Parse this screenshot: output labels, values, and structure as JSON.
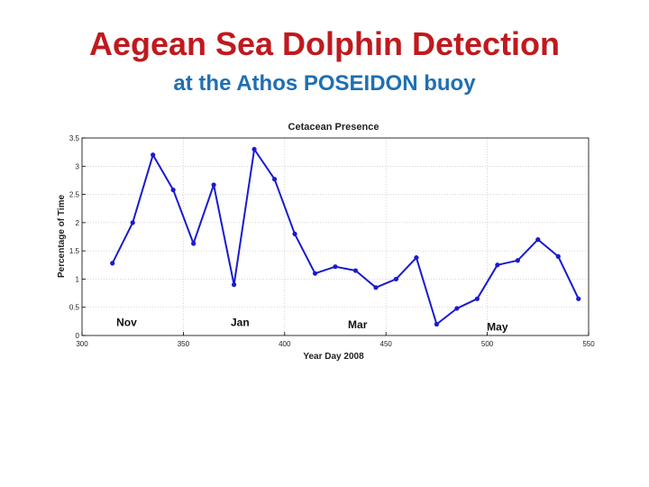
{
  "slide": {
    "title": "Aegean Sea Dolphin Detection",
    "subtitle": "at the Athos POSEIDON buoy"
  },
  "chart_data": {
    "type": "line",
    "title": "Cetacean Presence",
    "xlabel": "Year Day 2008",
    "ylabel": "Percentage of Time",
    "xlim": [
      300,
      550
    ],
    "ylim": [
      0,
      3.5
    ],
    "xticks": [
      300,
      350,
      400,
      450,
      500,
      550
    ],
    "yticks": [
      0,
      0.5,
      1,
      1.5,
      2,
      2.5,
      3,
      3.5
    ],
    "grid": true,
    "line_color": "#1a1ad0",
    "series": [
      {
        "x": [
          315,
          325,
          335,
          345,
          355,
          365,
          375,
          385,
          395,
          405,
          415,
          425,
          435,
          445,
          455,
          465,
          475,
          485,
          495,
          505,
          515,
          525,
          535,
          545
        ],
        "values": [
          1.28,
          2.0,
          3.2,
          2.58,
          1.63,
          2.67,
          0.9,
          3.3,
          2.77,
          1.8,
          1.1,
          1.22,
          1.15,
          0.85,
          1.0,
          1.38,
          0.2,
          0.48,
          0.65,
          1.25,
          1.33,
          1.7,
          1.4,
          0.65
        ]
      }
    ],
    "annotations": [
      {
        "text": "Nov",
        "x": 322,
        "y": 0.17
      },
      {
        "text": "Jan",
        "x": 378,
        "y": 0.17
      },
      {
        "text": "Mar",
        "x": 436,
        "y": 0.13
      },
      {
        "text": "May",
        "x": 505,
        "y": 0.09
      }
    ]
  }
}
